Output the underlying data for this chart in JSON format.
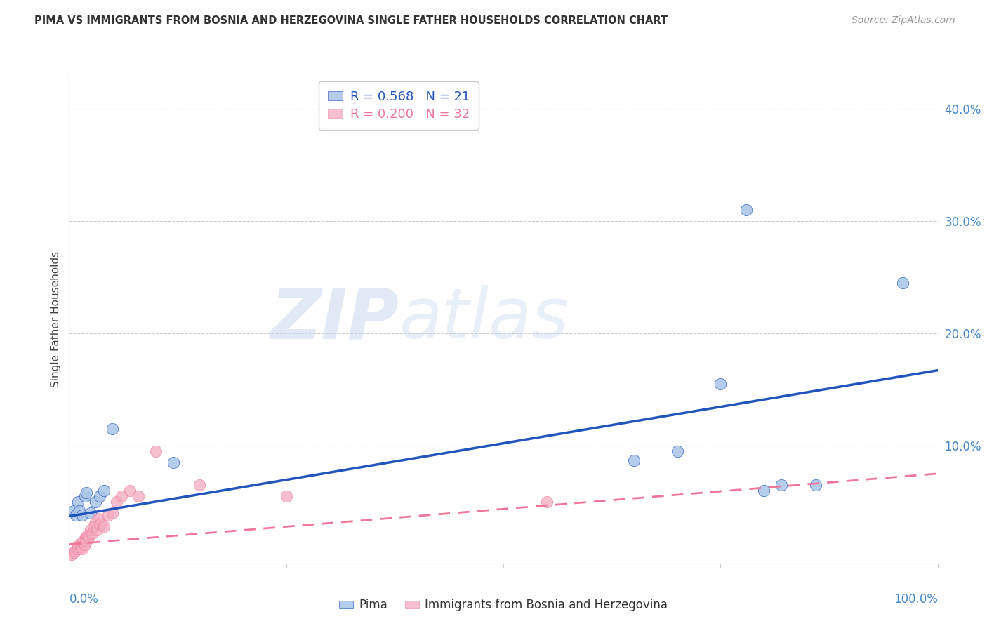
{
  "title": "PIMA VS IMMIGRANTS FROM BOSNIA AND HERZEGOVINA SINGLE FATHER HOUSEHOLDS CORRELATION CHART",
  "source": "Source: ZipAtlas.com",
  "ylabel": "Single Father Households",
  "ytick_values": [
    0.0,
    0.1,
    0.2,
    0.3,
    0.4
  ],
  "ytick_labels": [
    "",
    "10.0%",
    "20.0%",
    "30.0%",
    "40.0%"
  ],
  "xlim": [
    0.0,
    1.0
  ],
  "ylim": [
    -0.005,
    0.43
  ],
  "pima_color": "#aac4e8",
  "bosnia_color": "#f4aabf",
  "pima_line_color": "#2255bb",
  "bosnia_line_color": "#ee7799",
  "tick_color": "#4488cc",
  "grid_color": "#cccccc",
  "pima_scatter_x": [
    0.005,
    0.008,
    0.01,
    0.012,
    0.015,
    0.018,
    0.02,
    0.025,
    0.03,
    0.035,
    0.04,
    0.05,
    0.12,
    0.65,
    0.7,
    0.75,
    0.78,
    0.8,
    0.82,
    0.86,
    0.96
  ],
  "pima_scatter_y": [
    0.042,
    0.038,
    0.05,
    0.042,
    0.038,
    0.055,
    0.058,
    0.04,
    0.05,
    0.055,
    0.06,
    0.115,
    0.085,
    0.087,
    0.095,
    0.155,
    0.31,
    0.06,
    0.065,
    0.065,
    0.245
  ],
  "bosnia_scatter_x": [
    0.003,
    0.005,
    0.007,
    0.009,
    0.01,
    0.012,
    0.014,
    0.015,
    0.016,
    0.018,
    0.019,
    0.02,
    0.021,
    0.022,
    0.025,
    0.026,
    0.028,
    0.03,
    0.032,
    0.034,
    0.036,
    0.04,
    0.045,
    0.05,
    0.055,
    0.06,
    0.07,
    0.08,
    0.1,
    0.15,
    0.25,
    0.55
  ],
  "bosnia_scatter_y": [
    0.003,
    0.005,
    0.006,
    0.008,
    0.01,
    0.012,
    0.01,
    0.008,
    0.015,
    0.012,
    0.018,
    0.015,
    0.02,
    0.018,
    0.025,
    0.022,
    0.028,
    0.032,
    0.025,
    0.035,
    0.03,
    0.028,
    0.038,
    0.04,
    0.05,
    0.055,
    0.06,
    0.055,
    0.095,
    0.065,
    0.055,
    0.05
  ],
  "pima_line_x": [
    0.0,
    1.0
  ],
  "pima_line_y": [
    0.037,
    0.167
  ],
  "bosnia_line_x": [
    0.0,
    1.0
  ],
  "bosnia_line_y": [
    0.012,
    0.075
  ],
  "background_color": "#ffffff"
}
